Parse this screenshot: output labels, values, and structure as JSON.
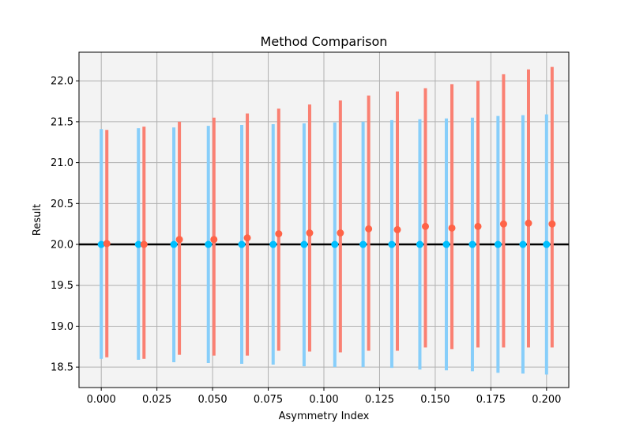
{
  "chart_data": {
    "type": "scatter",
    "title": "Method Comparison",
    "xlabel": "Asymmetry Index",
    "ylabel": "Result",
    "xlim": [
      -0.01,
      0.21
    ],
    "ylim": [
      18.25,
      22.35
    ],
    "xticks": [
      0.0,
      0.025,
      0.05,
      0.075,
      0.1,
      0.125,
      0.15,
      0.175,
      0.2
    ],
    "xtick_labels": [
      "0.000",
      "0.025",
      "0.050",
      "0.075",
      "0.100",
      "0.125",
      "0.150",
      "0.175",
      "0.200"
    ],
    "yticks": [
      18.5,
      19.0,
      19.5,
      20.0,
      20.5,
      21.0,
      21.5,
      22.0
    ],
    "ytick_labels": [
      "18.5",
      "19.0",
      "19.5",
      "20.0",
      "20.5",
      "21.0",
      "21.5",
      "22.0"
    ],
    "grid": true,
    "background": "#f3f3f3",
    "reference_line": {
      "y": 20.0,
      "color": "#000000"
    },
    "series": [
      {
        "color": "#00bfff",
        "bar_color": "#87cefa",
        "x": [
          0.0,
          0.0167,
          0.0326,
          0.0481,
          0.0631,
          0.0772,
          0.0911,
          0.1049,
          0.1176,
          0.1305,
          0.1431,
          0.155,
          0.1667,
          0.1782,
          0.1894,
          0.2
        ],
        "y": [
          20.0,
          20.0,
          20.0,
          20.0,
          20.0,
          20.0,
          20.0,
          20.0,
          20.0,
          20.0,
          20.0,
          20.0,
          20.0,
          20.0,
          20.0,
          20.0
        ],
        "low": [
          18.6,
          18.59,
          18.56,
          18.55,
          18.54,
          18.53,
          18.51,
          18.5,
          18.5,
          18.49,
          18.47,
          18.46,
          18.45,
          18.43,
          18.42,
          18.41
        ],
        "high": [
          21.41,
          21.42,
          21.43,
          21.45,
          21.46,
          21.47,
          21.48,
          21.49,
          21.5,
          21.52,
          21.53,
          21.54,
          21.55,
          21.57,
          21.58,
          21.59
        ]
      },
      {
        "color": "#ff6347",
        "bar_color": "#fa8072",
        "x": [
          0.0025,
          0.0192,
          0.0351,
          0.0506,
          0.0656,
          0.0797,
          0.0936,
          0.1074,
          0.1201,
          0.133,
          0.1456,
          0.1575,
          0.1692,
          0.1807,
          0.1919,
          0.2025
        ],
        "y": [
          20.01,
          20.0,
          20.06,
          20.06,
          20.08,
          20.13,
          20.14,
          20.14,
          20.19,
          20.18,
          20.22,
          20.2,
          20.22,
          20.25,
          20.26,
          20.25
        ],
        "low": [
          18.62,
          18.6,
          18.65,
          18.64,
          18.64,
          18.7,
          18.69,
          18.68,
          18.7,
          18.7,
          18.74,
          18.72,
          18.74,
          18.74,
          18.74,
          18.74
        ],
        "high": [
          21.4,
          21.44,
          21.5,
          21.55,
          21.6,
          21.66,
          21.71,
          21.76,
          21.82,
          21.87,
          21.91,
          21.96,
          22.0,
          22.08,
          22.14,
          22.17
        ]
      }
    ]
  }
}
